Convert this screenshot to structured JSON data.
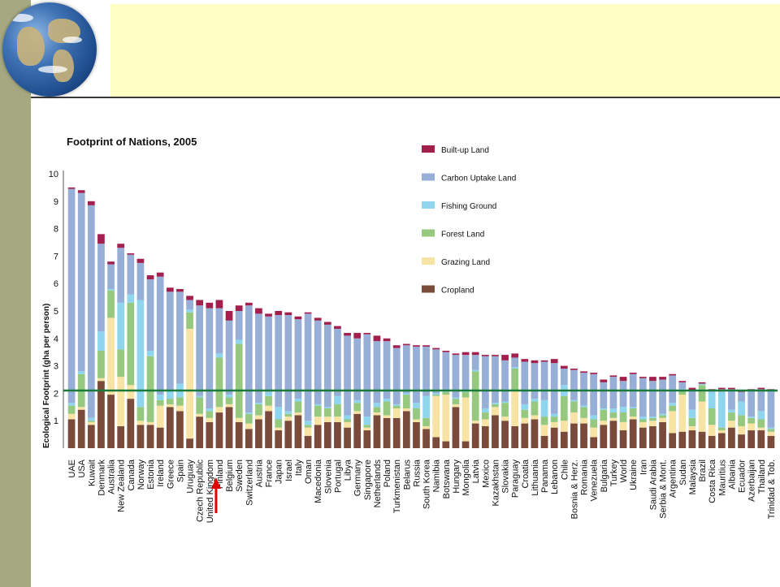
{
  "colors": {
    "sidebar": "#a6a980",
    "header_band": "#ffffc4",
    "built_up": "#a3204e",
    "carbon": "#97afd6",
    "fishing": "#8fd5ee",
    "forest": "#96c87f",
    "grazing": "#f7e3a3",
    "cropland": "#7a4a3a",
    "biocapacity_line": "#1a7a3a",
    "marker_arrow": "#e00000"
  },
  "icons": {
    "globe": "earth-globe-icon",
    "marker": "up-arrow-icon"
  },
  "chart_data": {
    "type": "bar",
    "stacked": true,
    "title": "Footprint of Nations, 2005",
    "ylabel": "Ecological Footprint (gha per person)",
    "xlabel": "",
    "ylim": [
      0,
      10
    ],
    "yticks": [
      1,
      2,
      3,
      4,
      5,
      6,
      7,
      8,
      9,
      10
    ],
    "grid": false,
    "legend_position": "top-right",
    "reference_line": {
      "value": 2.1
    },
    "highlight_category": "Finland",
    "categories": [
      "UAE",
      "USA",
      "Kuwait",
      "Denmark",
      "Australia",
      "New Zealand",
      "Canada",
      "Norway",
      "Estonia",
      "Ireland",
      "Greece",
      "Spain",
      "Uruguay",
      "Czech Republic",
      "United Kingdom",
      "Finland",
      "Belgium",
      "Sweden",
      "Switzerland",
      "Austria",
      "France",
      "Japan",
      "Israel",
      "Italy",
      "Oman",
      "Macedonia",
      "Slovenia",
      "Portugal",
      "Libya",
      "Germany",
      "Singapore",
      "Netherlands",
      "Poland",
      "Turkmenistan",
      "Belarus",
      "Russia",
      "South Korea",
      "Namibia",
      "Botswana",
      "Hungary",
      "Mongolia",
      "Latvia",
      "Mexico",
      "Kazakhstan",
      "Slovakia",
      "Paraguay",
      "Croatia",
      "Lithuania",
      "Panama",
      "Lebanon",
      "Chile",
      "Bosnia & Herz.",
      "Romania",
      "Venezuela",
      "Bulgaria",
      "Turkey",
      "World",
      "Ukraine",
      "Iran",
      "Saudi Arabia",
      "Serbia & Mont.",
      "Argentina",
      "Sudan",
      "Malaysia",
      "Brazil",
      "Costa Rica",
      "Mauritius",
      "Albania",
      "Ecuador",
      "Azerbaijan",
      "Thailand",
      "Trinidad & Tob."
    ],
    "series": [
      {
        "name": "Cropland",
        "values": [
          1.05,
          1.4,
          0.85,
          2.45,
          1.95,
          0.8,
          1.8,
          0.85,
          0.85,
          0.75,
          1.5,
          1.35,
          0.35,
          1.15,
          0.95,
          1.3,
          1.5,
          0.95,
          0.7,
          1.05,
          1.35,
          0.65,
          1.0,
          1.2,
          0.45,
          0.85,
          0.95,
          0.95,
          0.75,
          1.25,
          0.65,
          1.2,
          1.1,
          1.1,
          1.35,
          0.95,
          0.7,
          0.4,
          0.25,
          1.5,
          0.25,
          0.9,
          0.8,
          1.2,
          1.0,
          0.8,
          0.9,
          1.05,
          0.45,
          0.75,
          0.6,
          0.9,
          0.9,
          0.4,
          0.85,
          1.0,
          0.65,
          1.05,
          0.75,
          0.8,
          0.95,
          0.55,
          0.6,
          0.65,
          0.6,
          0.45,
          0.55,
          0.75,
          0.5,
          0.65,
          0.65,
          0.45
        ]
      },
      {
        "name": "Grazing Land",
        "values": [
          0.2,
          0.1,
          0.1,
          0.1,
          2.8,
          1.8,
          0.5,
          0.15,
          0.1,
          0.8,
          0.1,
          0.2,
          4.0,
          0.1,
          0.15,
          0.2,
          0.1,
          0.15,
          0.2,
          0.15,
          0.2,
          0.1,
          0.15,
          0.1,
          0.3,
          0.3,
          0.2,
          0.2,
          0.2,
          0.1,
          0.1,
          0.1,
          0.1,
          0.35,
          0.1,
          0.1,
          0.1,
          1.5,
          1.7,
          0.1,
          1.6,
          0.1,
          0.25,
          0.3,
          0.15,
          1.3,
          0.2,
          0.15,
          0.4,
          0.2,
          0.4,
          0.4,
          0.2,
          0.35,
          0.15,
          0.1,
          0.3,
          0.1,
          0.2,
          0.2,
          0.15,
          0.8,
          1.35,
          0.15,
          1.1,
          0.4,
          0.1,
          0.25,
          0.3,
          0.25,
          0.1,
          0.15
        ]
      },
      {
        "name": "Forest Land",
        "values": [
          0.3,
          1.2,
          0.05,
          1.0,
          1.0,
          1.0,
          3.0,
          0.5,
          2.4,
          0.2,
          0.2,
          0.3,
          0.6,
          0.6,
          0.25,
          1.8,
          0.25,
          2.7,
          0.35,
          0.4,
          0.35,
          0.3,
          0.1,
          0.4,
          0.1,
          0.4,
          0.3,
          0.45,
          0.1,
          0.3,
          0.1,
          0.2,
          0.5,
          0.1,
          0.5,
          0.4,
          0.3,
          0.05,
          0.1,
          0.2,
          0.2,
          1.8,
          0.25,
          0.1,
          0.5,
          0.8,
          0.3,
          0.5,
          0.3,
          0.2,
          0.9,
          0.4,
          0.4,
          0.3,
          0.4,
          0.2,
          0.35,
          0.3,
          0.1,
          0.1,
          0.1,
          0.2,
          0.15,
          0.3,
          0.6,
          0.6,
          0.1,
          0.3,
          0.4,
          0.2,
          0.3,
          0.1
        ]
      },
      {
        "name": "Fishing Ground",
        "values": [
          0.1,
          0.1,
          0.1,
          0.7,
          0.05,
          1.7,
          0.3,
          3.9,
          0.2,
          0.2,
          0.3,
          0.5,
          0.1,
          0.05,
          0.1,
          0.15,
          0.1,
          0.15,
          0.05,
          0.05,
          0.15,
          0.45,
          0.1,
          0.1,
          0.15,
          0.05,
          0.05,
          0.3,
          0.15,
          0.1,
          0.3,
          0.15,
          0.1,
          0.05,
          0.05,
          0.2,
          0.8,
          0.05,
          0.05,
          0.05,
          0.05,
          0.05,
          0.15,
          0.05,
          0.05,
          0.05,
          0.2,
          0.1,
          0.6,
          0.1,
          0.4,
          0.05,
          0.05,
          0.15,
          0.05,
          0.15,
          0.2,
          0.05,
          0.1,
          0.05,
          0.05,
          0.1,
          0.05,
          0.3,
          0.05,
          0.6,
          1.3,
          0.1,
          0.5,
          0.05,
          0.3,
          0.05
        ]
      },
      {
        "name": "Carbon Uptake Land",
        "values": [
          7.8,
          6.5,
          7.75,
          3.2,
          0.9,
          2.0,
          1.45,
          1.35,
          2.6,
          4.3,
          3.6,
          3.35,
          0.35,
          3.3,
          3.65,
          1.65,
          2.7,
          1.05,
          3.9,
          3.25,
          2.75,
          3.35,
          3.5,
          2.9,
          3.9,
          3.05,
          3.0,
          2.45,
          2.9,
          2.25,
          3.0,
          2.25,
          2.1,
          2.05,
          1.75,
          2.05,
          1.8,
          1.6,
          1.4,
          1.55,
          1.3,
          0.55,
          1.9,
          1.7,
          1.5,
          0.35,
          1.55,
          1.3,
          1.4,
          1.85,
          0.6,
          1.1,
          1.2,
          1.5,
          0.95,
          1.15,
          0.95,
          1.2,
          1.4,
          1.3,
          1.25,
          1.0,
          0.25,
          0.7,
          0.0,
          0.05,
          0.1,
          0.75,
          0.35,
          0.95,
          0.8,
          1.35
        ]
      },
      {
        "name": "Built-up Land",
        "values": [
          0.05,
          0.1,
          0.15,
          0.35,
          0.1,
          0.15,
          0.05,
          0.15,
          0.15,
          0.15,
          0.15,
          0.1,
          0.15,
          0.2,
          0.2,
          0.3,
          0.35,
          0.2,
          0.1,
          0.2,
          0.1,
          0.15,
          0.1,
          0.1,
          0.05,
          0.1,
          0.1,
          0.1,
          0.1,
          0.2,
          0.05,
          0.2,
          0.1,
          0.1,
          0.05,
          0.05,
          0.05,
          0.05,
          0.05,
          0.05,
          0.1,
          0.1,
          0.05,
          0.05,
          0.2,
          0.15,
          0.1,
          0.1,
          0.05,
          0.15,
          0.1,
          0.05,
          0.05,
          0.05,
          0.1,
          0.05,
          0.15,
          0.05,
          0.05,
          0.15,
          0.1,
          0.05,
          0.05,
          0.1,
          0.05,
          0.05,
          0.05,
          0.05,
          0.05,
          0.05,
          0.05,
          0.05
        ]
      }
    ],
    "legend": [
      "Built-up Land",
      "Carbon Uptake Land",
      "Fishing Ground",
      "Forest Land",
      "Grazing Land",
      "Cropland"
    ]
  }
}
